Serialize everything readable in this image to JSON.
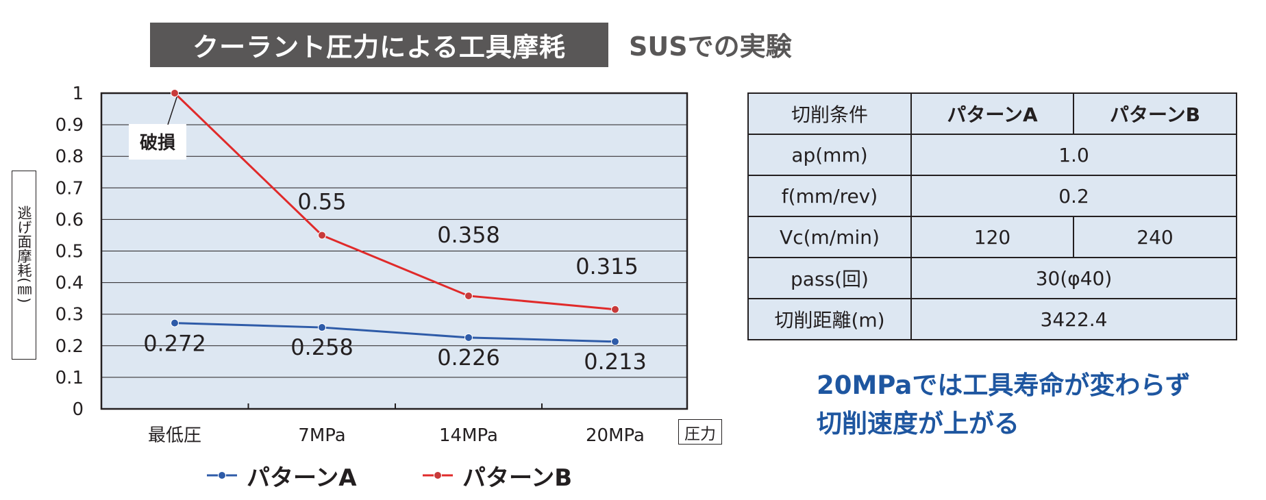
{
  "header": {
    "title": "クーラント圧力による工具摩耗",
    "subtitle": "SUSでの実験"
  },
  "chart_data": {
    "type": "line",
    "categories": [
      "最低圧",
      "7MPa",
      "14MPa",
      "20MPa"
    ],
    "ylim": [
      0,
      1
    ],
    "yticks": [
      "0",
      "0.1",
      "0.2",
      "0.3",
      "0.4",
      "0.5",
      "0.6",
      "0.7",
      "0.8",
      "0.9",
      "1"
    ],
    "ylabel": "逃げ面摩耗(㎜)",
    "xlabel": "圧力",
    "grid": true,
    "legend_position": "bottom",
    "series": [
      {
        "name": "パターンA",
        "color": "#2e5ba8",
        "values": [
          0.272,
          0.258,
          0.226,
          0.213
        ],
        "labels": [
          "0.272",
          "0.258",
          "0.226",
          "0.213"
        ]
      },
      {
        "name": "パターンB",
        "color": "#e02a2a",
        "values": [
          1.0,
          0.55,
          0.358,
          0.315
        ],
        "labels": [
          "",
          "0.55",
          "0.358",
          "0.315"
        ]
      }
    ],
    "annotation": "破損"
  },
  "table": {
    "headers": [
      "切削条件",
      "パターンA",
      "パターンB"
    ],
    "rows": [
      {
        "label": "ap(mm)",
        "values": [
          "1.0"
        ]
      },
      {
        "label": "f(mm/rev)",
        "values": [
          "0.2"
        ]
      },
      {
        "label": "Vc(m/min)",
        "values": [
          "120",
          "240"
        ]
      },
      {
        "label": "pass(回)",
        "values": [
          "30(φ40)"
        ]
      },
      {
        "label": "切削距離(m)",
        "values": [
          "3422.4"
        ]
      }
    ]
  },
  "note": {
    "line1": "20MPaでは工具寿命が変わらず",
    "line2": "切削速度が上がる"
  },
  "colors": {
    "plot_bg": "#dde7f2",
    "title_bg": "#595757",
    "note": "#1e56a0"
  }
}
